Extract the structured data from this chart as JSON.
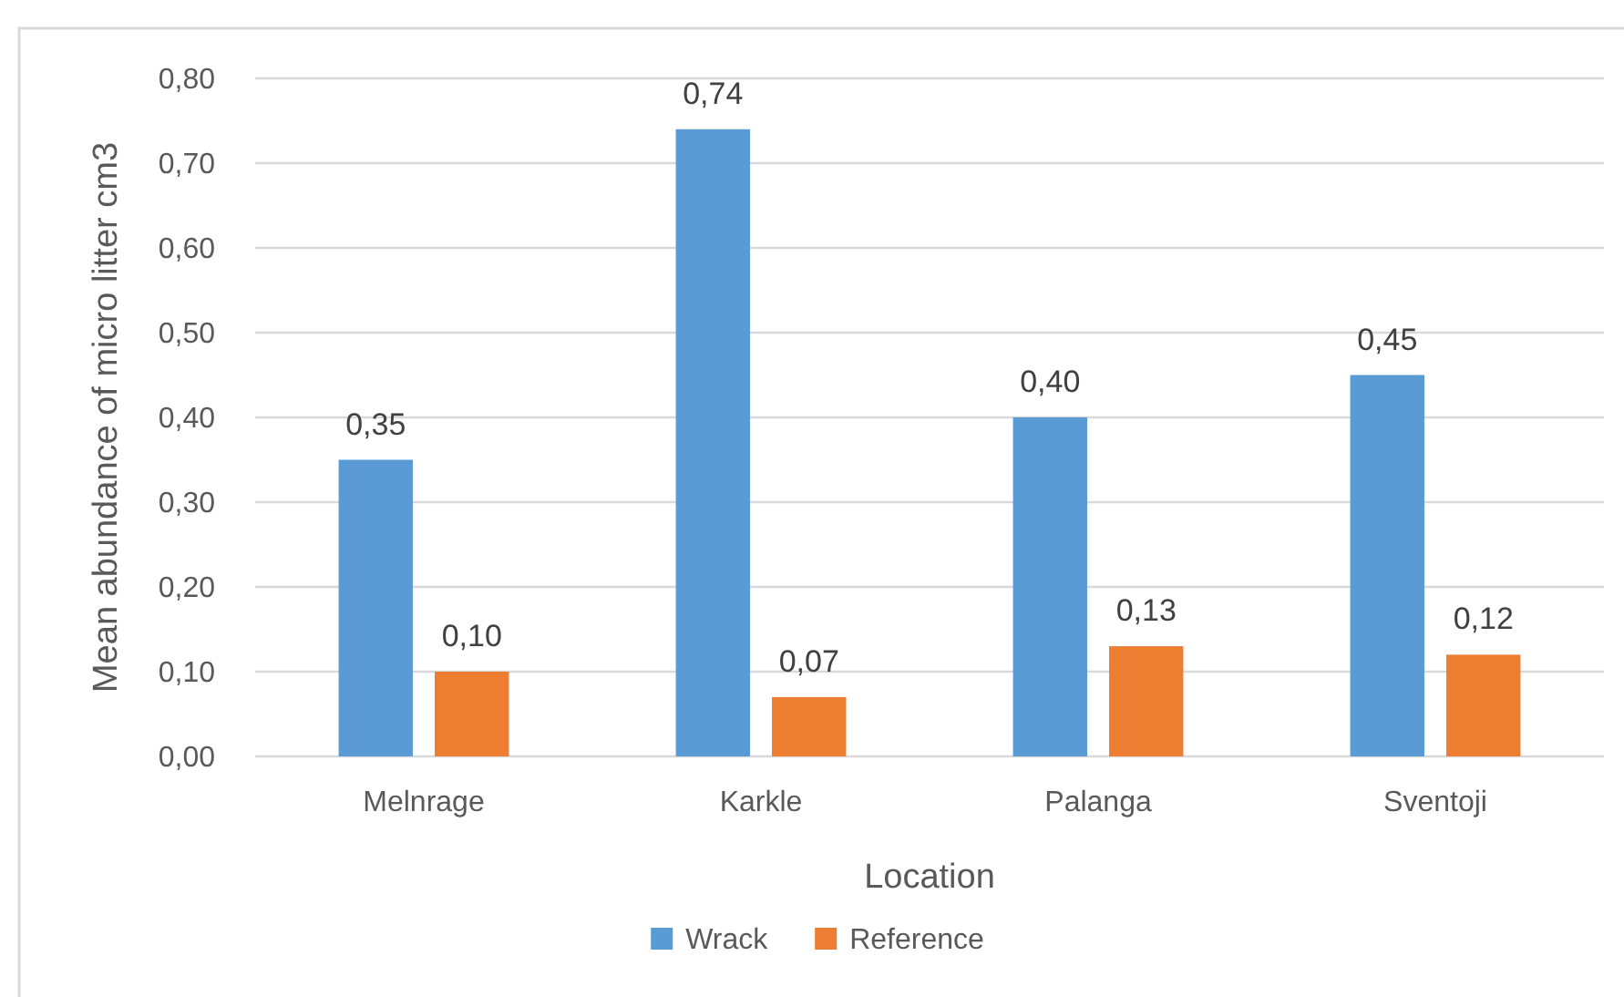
{
  "chart_data": {
    "type": "bar",
    "xlabel": "Location",
    "ylabel": "Mean abundance of micro litter cm3",
    "categories": [
      "Melnrage",
      "Karkle",
      "Palanga",
      "Sventoji"
    ],
    "series": [
      {
        "name": "Wrack",
        "color": "#5b9bd5",
        "values": [
          0.35,
          0.74,
          0.4,
          0.45
        ],
        "value_labels": [
          "0,35",
          "0,74",
          "0,40",
          "0,45"
        ]
      },
      {
        "name": "Reference",
        "color": "#ed7d31",
        "values": [
          0.1,
          0.07,
          0.13,
          0.12
        ],
        "value_labels": [
          "0,10",
          "0,07",
          "0,13",
          "0,12"
        ]
      }
    ],
    "ylim": [
      0,
      0.8
    ],
    "yticks": [
      {
        "value": 0,
        "label": "0,00"
      },
      {
        "value": 0.1,
        "label": "0,10"
      },
      {
        "value": 0.2,
        "label": "0,20"
      },
      {
        "value": 0.3,
        "label": "0,30"
      },
      {
        "value": 0.4,
        "label": "0,40"
      },
      {
        "value": 0.5,
        "label": "0,50"
      },
      {
        "value": 0.6,
        "label": "0,60"
      },
      {
        "value": 0.7,
        "label": "0,70"
      },
      {
        "value": 0.8,
        "label": "0,80"
      }
    ],
    "grid": "y",
    "legend": "bottom"
  }
}
